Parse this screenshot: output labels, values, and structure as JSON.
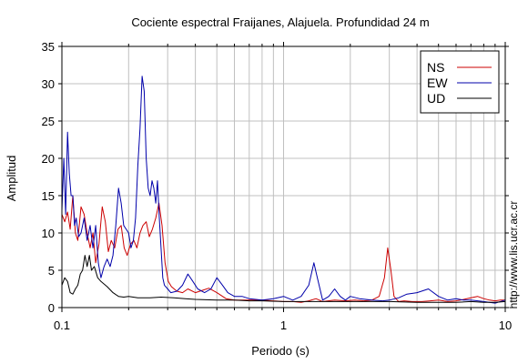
{
  "chart_data": {
    "type": "line",
    "title": "Cociente espectral Fraijanes, Alajuela. Profundidad 24 m",
    "xlabel": "Periodo (s)",
    "ylabel": "Amplitud",
    "xscale": "log",
    "xlim": [
      0.1,
      10
    ],
    "ylim": [
      0,
      35
    ],
    "grid": true,
    "legend_position": "top-right",
    "watermark": "http://www.lis.ucr.ac.cr",
    "x_ticks": [
      {
        "value": 0.1,
        "label": "0.1"
      },
      {
        "value": 1,
        "label": "1"
      },
      {
        "value": 10,
        "label": "10"
      }
    ],
    "y_ticks": [
      {
        "value": 0,
        "label": "0"
      },
      {
        "value": 5,
        "label": "5"
      },
      {
        "value": 10,
        "label": "10"
      },
      {
        "value": 15,
        "label": "15"
      },
      {
        "value": 20,
        "label": "20"
      },
      {
        "value": 25,
        "label": "25"
      },
      {
        "value": 30,
        "label": "30"
      },
      {
        "value": 35,
        "label": "35"
      }
    ],
    "series": [
      {
        "name": "NS",
        "color": "#cc0000",
        "x": [
          0.1,
          0.103,
          0.106,
          0.109,
          0.112,
          0.115,
          0.118,
          0.122,
          0.126,
          0.13,
          0.134,
          0.138,
          0.142,
          0.147,
          0.152,
          0.157,
          0.162,
          0.167,
          0.173,
          0.179,
          0.185,
          0.191,
          0.197,
          0.204,
          0.211,
          0.218,
          0.225,
          0.232,
          0.24,
          0.248,
          0.256,
          0.265,
          0.274,
          0.283,
          0.292,
          0.302,
          0.312,
          0.33,
          0.35,
          0.37,
          0.4,
          0.43,
          0.46,
          0.5,
          0.55,
          0.6,
          0.65,
          0.7,
          0.8,
          0.9,
          1.0,
          1.1,
          1.2,
          1.3,
          1.4,
          1.5,
          1.7,
          1.9,
          2.1,
          2.3,
          2.5,
          2.7,
          2.85,
          2.95,
          3.05,
          3.15,
          3.3,
          3.5,
          3.8,
          4.2,
          4.6,
          5.0,
          5.5,
          6.0,
          6.5,
          7.0,
          7.5,
          8.0,
          8.5,
          9.0,
          9.5,
          10.0
        ],
        "y": [
          12.5,
          11.5,
          12.8,
          10.5,
          15.0,
          10.0,
          9.0,
          13.5,
          12.5,
          10.0,
          8.0,
          10.0,
          6.0,
          8.5,
          13.5,
          11.5,
          7.5,
          9.0,
          8.0,
          10.5,
          11.0,
          8.0,
          7.0,
          8.5,
          9.0,
          8.0,
          10.0,
          11.0,
          11.5,
          9.5,
          10.5,
          12.0,
          14.0,
          11.0,
          6.0,
          3.5,
          2.8,
          2.2,
          2.0,
          2.5,
          2.0,
          2.3,
          2.6,
          2.0,
          1.2,
          1.0,
          1.0,
          1.0,
          1.0,
          0.9,
          0.8,
          0.8,
          0.7,
          0.9,
          1.2,
          0.8,
          1.0,
          0.9,
          1.0,
          0.9,
          1.0,
          1.5,
          4.0,
          8.0,
          5.0,
          1.5,
          0.8,
          0.9,
          0.8,
          0.8,
          0.9,
          1.0,
          0.8,
          0.9,
          1.1,
          1.3,
          1.5,
          1.2,
          1.0,
          0.9,
          1.0,
          1.0
        ]
      },
      {
        "name": "EW",
        "color": "#0000aa",
        "x": [
          0.1,
          0.102,
          0.104,
          0.106,
          0.108,
          0.11,
          0.112,
          0.114,
          0.116,
          0.119,
          0.122,
          0.126,
          0.13,
          0.134,
          0.138,
          0.142,
          0.146,
          0.15,
          0.155,
          0.16,
          0.165,
          0.17,
          0.175,
          0.18,
          0.185,
          0.19,
          0.195,
          0.2,
          0.205,
          0.21,
          0.215,
          0.22,
          0.225,
          0.23,
          0.235,
          0.24,
          0.245,
          0.25,
          0.255,
          0.26,
          0.265,
          0.27,
          0.275,
          0.28,
          0.285,
          0.29,
          0.3,
          0.31,
          0.33,
          0.35,
          0.37,
          0.39,
          0.41,
          0.44,
          0.47,
          0.5,
          0.53,
          0.56,
          0.6,
          0.65,
          0.7,
          0.8,
          0.9,
          1.0,
          1.1,
          1.2,
          1.3,
          1.37,
          1.42,
          1.5,
          1.6,
          1.7,
          1.8,
          1.9,
          2.0,
          2.2,
          2.5,
          2.8,
          3.0,
          3.3,
          3.6,
          4.0,
          4.5,
          5.0,
          5.5,
          6.0,
          6.5,
          7.0,
          8.0,
          9.0,
          10.0
        ],
        "y": [
          13.0,
          20.0,
          12.5,
          23.5,
          18.0,
          15.0,
          15.0,
          11.0,
          12.0,
          9.5,
          10.0,
          12.0,
          9.0,
          11.0,
          8.0,
          11.0,
          6.0,
          4.0,
          5.5,
          6.5,
          5.5,
          7.0,
          11.0,
          16.0,
          14.0,
          11.0,
          10.5,
          10.0,
          8.0,
          9.0,
          12.0,
          19.0,
          24.0,
          31.0,
          29.0,
          20.0,
          16.0,
          15.0,
          17.0,
          16.0,
          14.0,
          17.0,
          12.0,
          8.0,
          4.0,
          3.0,
          2.5,
          2.0,
          2.2,
          3.0,
          4.5,
          3.5,
          2.5,
          2.0,
          2.5,
          4.0,
          3.0,
          2.0,
          1.5,
          1.5,
          1.2,
          1.0,
          1.2,
          1.5,
          1.0,
          1.5,
          3.0,
          6.0,
          4.0,
          1.0,
          1.5,
          2.5,
          1.5,
          1.0,
          1.5,
          1.2,
          1.0,
          0.9,
          1.0,
          1.3,
          1.8,
          2.0,
          2.5,
          1.5,
          1.0,
          1.2,
          1.0,
          1.0,
          0.8,
          0.6,
          1.0
        ]
      },
      {
        "name": "UD",
        "color": "#000000",
        "x": [
          0.1,
          0.103,
          0.106,
          0.109,
          0.112,
          0.115,
          0.118,
          0.121,
          0.124,
          0.127,
          0.13,
          0.133,
          0.136,
          0.14,
          0.145,
          0.15,
          0.16,
          0.17,
          0.18,
          0.19,
          0.2,
          0.22,
          0.25,
          0.28,
          0.32,
          0.36,
          0.4,
          0.5,
          0.6,
          0.7,
          0.8,
          1.0,
          1.5,
          2.0,
          3.0,
          4.0,
          5.0,
          6.0,
          7.0,
          8.0,
          9.0,
          10.0
        ],
        "y": [
          3.0,
          4.0,
          3.5,
          2.0,
          1.8,
          2.5,
          3.0,
          4.5,
          5.0,
          7.0,
          5.5,
          7.0,
          5.0,
          5.5,
          4.0,
          3.5,
          2.8,
          2.0,
          1.5,
          1.4,
          1.5,
          1.3,
          1.3,
          1.4,
          1.3,
          1.2,
          1.1,
          1.0,
          1.0,
          0.9,
          0.9,
          0.8,
          0.8,
          0.8,
          0.8,
          0.7,
          0.7,
          0.7,
          0.8,
          0.7,
          0.7,
          0.8
        ]
      }
    ]
  }
}
